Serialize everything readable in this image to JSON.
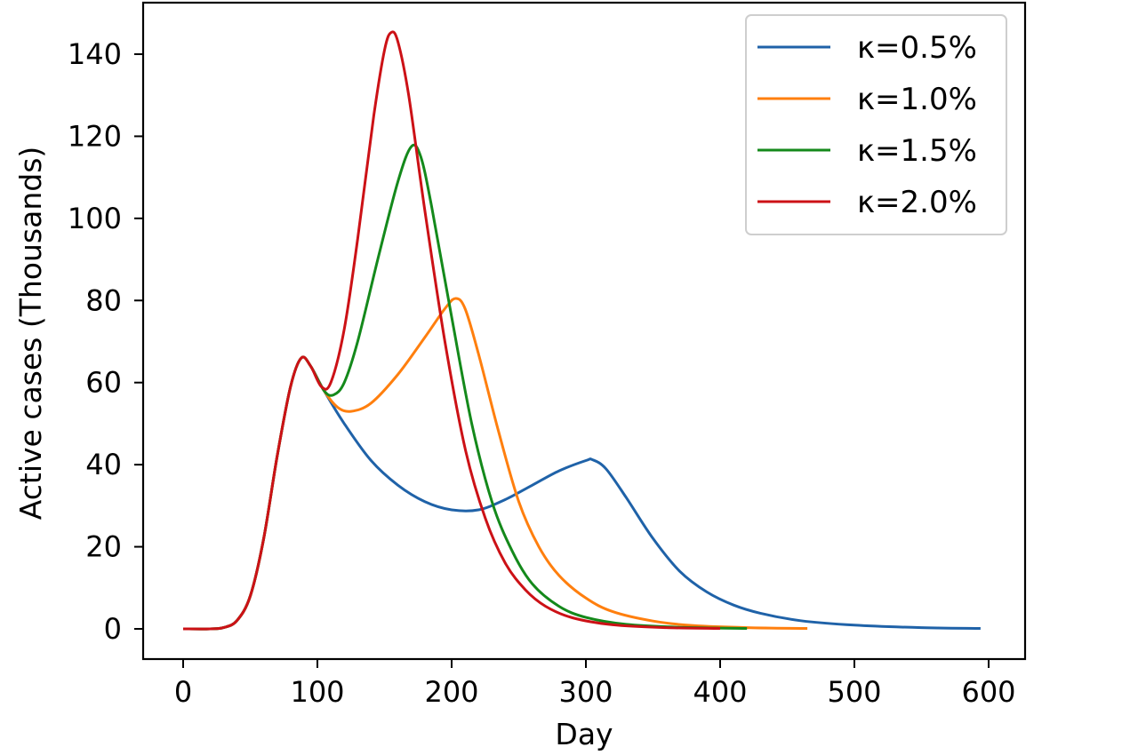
{
  "chart_data": {
    "type": "line",
    "title": "",
    "xlabel": "Day",
    "ylabel": "Active cases (Thousands)",
    "xlim": [
      -30,
      625
    ],
    "ylim": [
      -7.5,
      152
    ],
    "xticks": [
      0,
      100,
      200,
      300,
      400,
      500,
      600
    ],
    "yticks": [
      0,
      20,
      40,
      60,
      80,
      100,
      120,
      140
    ],
    "grid": false,
    "legend_position": "upper right",
    "series": [
      {
        "name": "κ=0.5%",
        "color": "#1f62a8",
        "points": [
          [
            0,
            0
          ],
          [
            20,
            0
          ],
          [
            30,
            0.3
          ],
          [
            40,
            2
          ],
          [
            50,
            8
          ],
          [
            60,
            22
          ],
          [
            70,
            42
          ],
          [
            80,
            59
          ],
          [
            88,
            66
          ],
          [
            95,
            64
          ],
          [
            105,
            58
          ],
          [
            120,
            50
          ],
          [
            140,
            41
          ],
          [
            160,
            35
          ],
          [
            180,
            31
          ],
          [
            200,
            29
          ],
          [
            220,
            29
          ],
          [
            240,
            31.5
          ],
          [
            260,
            35
          ],
          [
            280,
            38.5
          ],
          [
            300,
            41
          ],
          [
            305,
            41.2
          ],
          [
            315,
            39
          ],
          [
            330,
            32
          ],
          [
            350,
            22
          ],
          [
            370,
            14
          ],
          [
            390,
            9
          ],
          [
            410,
            5.8
          ],
          [
            430,
            3.8
          ],
          [
            460,
            2
          ],
          [
            500,
            0.9
          ],
          [
            550,
            0.3
          ],
          [
            594,
            0.1
          ]
        ]
      },
      {
        "name": "κ=1.0%",
        "color": "#ff7f0e",
        "points": [
          [
            0,
            0
          ],
          [
            20,
            0
          ],
          [
            30,
            0.3
          ],
          [
            40,
            2
          ],
          [
            50,
            8
          ],
          [
            60,
            22
          ],
          [
            70,
            42
          ],
          [
            80,
            59
          ],
          [
            88,
            66
          ],
          [
            95,
            64
          ],
          [
            105,
            58
          ],
          [
            115,
            54
          ],
          [
            125,
            53
          ],
          [
            140,
            55
          ],
          [
            160,
            62
          ],
          [
            180,
            71
          ],
          [
            195,
            78
          ],
          [
            203,
            80.5
          ],
          [
            210,
            78
          ],
          [
            220,
            67
          ],
          [
            235,
            48
          ],
          [
            250,
            31
          ],
          [
            265,
            20
          ],
          [
            280,
            13
          ],
          [
            300,
            7.5
          ],
          [
            320,
            4.2
          ],
          [
            350,
            1.9
          ],
          [
            380,
            0.8
          ],
          [
            420,
            0.3
          ],
          [
            465,
            0.1
          ]
        ]
      },
      {
        "name": "κ=1.5%",
        "color": "#14891b",
        "points": [
          [
            0,
            0
          ],
          [
            20,
            0
          ],
          [
            30,
            0.3
          ],
          [
            40,
            2
          ],
          [
            50,
            8
          ],
          [
            60,
            22
          ],
          [
            70,
            42
          ],
          [
            80,
            59
          ],
          [
            88,
            66
          ],
          [
            95,
            64
          ],
          [
            105,
            58
          ],
          [
            112,
            57
          ],
          [
            120,
            60
          ],
          [
            130,
            70
          ],
          [
            145,
            90
          ],
          [
            160,
            109
          ],
          [
            170,
            117.5
          ],
          [
            177,
            115
          ],
          [
            185,
            103
          ],
          [
            200,
            76
          ],
          [
            215,
            50
          ],
          [
            230,
            31
          ],
          [
            245,
            19
          ],
          [
            260,
            11
          ],
          [
            280,
            5.5
          ],
          [
            300,
            2.8
          ],
          [
            330,
            1.1
          ],
          [
            370,
            0.4
          ],
          [
            420,
            0.1
          ]
        ]
      },
      {
        "name": "κ=2.0%",
        "color": "#cc1116",
        "points": [
          [
            0,
            0
          ],
          [
            20,
            0
          ],
          [
            30,
            0.3
          ],
          [
            40,
            2
          ],
          [
            50,
            8
          ],
          [
            60,
            22
          ],
          [
            70,
            42
          ],
          [
            80,
            59
          ],
          [
            88,
            66
          ],
          [
            95,
            64
          ],
          [
            103,
            59
          ],
          [
            110,
            60
          ],
          [
            120,
            73
          ],
          [
            130,
            95
          ],
          [
            142,
            125
          ],
          [
            150,
            141
          ],
          [
            155,
            145.3
          ],
          [
            160,
            143
          ],
          [
            168,
            130
          ],
          [
            180,
            102
          ],
          [
            195,
            70
          ],
          [
            210,
            44
          ],
          [
            225,
            27
          ],
          [
            240,
            16
          ],
          [
            255,
            9.5
          ],
          [
            270,
            5.5
          ],
          [
            290,
            2.7
          ],
          [
            320,
            1
          ],
          [
            360,
            0.3
          ],
          [
            400,
            0.1
          ]
        ]
      }
    ]
  }
}
